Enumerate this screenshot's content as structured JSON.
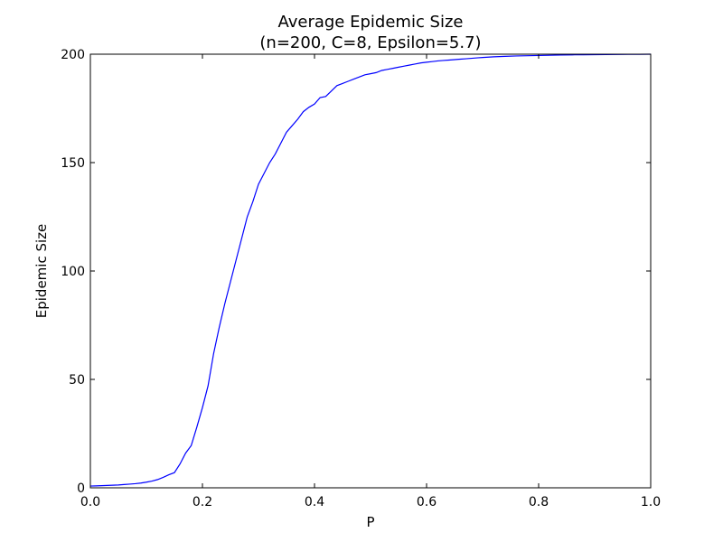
{
  "chart_data": {
    "type": "line",
    "title": "Average Epidemic Size",
    "subtitle": "(n=200, C=8, Epsilon=5.7)",
    "xlabel": "P",
    "ylabel": "Epidemic Size",
    "xlim": [
      0.0,
      1.0
    ],
    "ylim": [
      0,
      200
    ],
    "xticks": [
      "0.0",
      "0.2",
      "0.4",
      "0.6",
      "0.8",
      "1.0"
    ],
    "yticks": [
      "0",
      "50",
      "100",
      "150",
      "200"
    ],
    "grid": false,
    "line_color": "#0000ff",
    "series": [
      {
        "x": [
          0.0,
          0.01,
          0.02,
          0.03,
          0.04,
          0.05,
          0.06,
          0.07,
          0.08,
          0.09,
          0.1,
          0.11,
          0.12,
          0.13,
          0.14,
          0.15,
          0.16,
          0.17,
          0.18,
          0.19,
          0.2,
          0.21,
          0.22,
          0.23,
          0.24,
          0.25,
          0.26,
          0.27,
          0.28,
          0.29,
          0.3,
          0.31,
          0.32,
          0.33,
          0.34,
          0.35,
          0.36,
          0.37,
          0.38,
          0.39,
          0.4,
          0.41,
          0.42,
          0.43,
          0.44,
          0.45,
          0.46,
          0.47,
          0.48,
          0.49,
          0.5,
          0.51,
          0.52,
          0.53,
          0.54,
          0.55,
          0.56,
          0.57,
          0.58,
          0.59,
          0.6,
          0.61,
          0.62,
          0.63,
          0.64,
          0.65,
          0.66,
          0.67,
          0.68,
          0.69,
          0.7,
          0.72,
          0.74,
          0.76,
          0.78,
          0.8,
          0.82,
          0.84,
          0.86,
          0.88,
          0.9,
          0.92,
          0.94,
          0.96,
          0.98,
          1.0
        ],
        "values": [
          0.8,
          0.9,
          1.0,
          1.1,
          1.2,
          1.3,
          1.5,
          1.7,
          1.9,
          2.2,
          2.6,
          3.1,
          3.8,
          4.8,
          6.0,
          7.0,
          11.0,
          16.0,
          19.5,
          28.0,
          37.0,
          47.0,
          62.0,
          74.0,
          85.0,
          95.0,
          105.0,
          115.0,
          125.0,
          132.0,
          140.0,
          145.0,
          150.0,
          154.0,
          159.0,
          164.0,
          167.0,
          170.0,
          173.5,
          175.5,
          177.0,
          180.0,
          180.5,
          183.0,
          185.5,
          186.5,
          187.5,
          188.5,
          189.5,
          190.5,
          191.0,
          191.5,
          192.5,
          193.0,
          193.5,
          194.0,
          194.5,
          195.0,
          195.5,
          196.0,
          196.3,
          196.6,
          196.9,
          197.1,
          197.3,
          197.5,
          197.7,
          197.9,
          198.1,
          198.3,
          198.5,
          198.8,
          199.0,
          199.2,
          199.3,
          199.4,
          199.5,
          199.6,
          199.7,
          199.75,
          199.8,
          199.85,
          199.9,
          199.92,
          199.95,
          200.0
        ]
      }
    ]
  }
}
